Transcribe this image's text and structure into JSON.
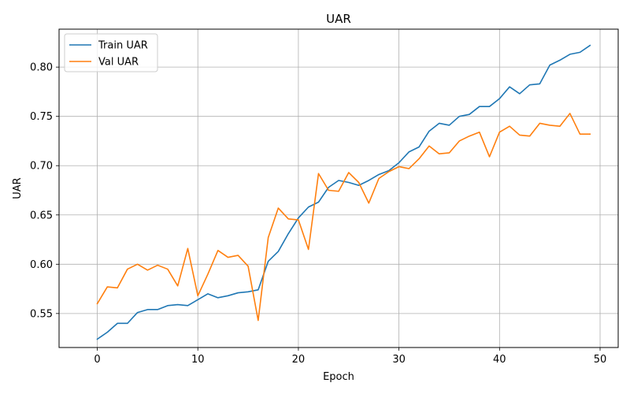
{
  "chart_data": {
    "type": "line",
    "title": "UAR",
    "xlabel": "Epoch",
    "ylabel": "UAR",
    "xlim": [
      -3.8,
      51.8
    ],
    "ylim": [
      0.5155,
      0.8385
    ],
    "xticks": [
      0,
      10,
      20,
      30,
      40,
      50
    ],
    "yticks": [
      0.55,
      0.6,
      0.65,
      0.7,
      0.75,
      0.8
    ],
    "xtick_labels": [
      "0",
      "10",
      "20",
      "30",
      "40",
      "50"
    ],
    "ytick_labels": [
      "0.55",
      "0.60",
      "0.65",
      "0.70",
      "0.75",
      "0.80"
    ],
    "grid": true,
    "legend_position": "top-left",
    "x": [
      0,
      1,
      2,
      3,
      4,
      5,
      6,
      7,
      8,
      9,
      10,
      11,
      12,
      13,
      14,
      15,
      16,
      17,
      18,
      19,
      20,
      21,
      22,
      23,
      24,
      25,
      26,
      27,
      28,
      29,
      30,
      31,
      32,
      33,
      34,
      35,
      36,
      37,
      38,
      39,
      40,
      41,
      42,
      43,
      44,
      45,
      46,
      47,
      48,
      49
    ],
    "series": [
      {
        "name": "Train UAR",
        "color": "#1f77b4",
        "values": [
          0.524,
          0.531,
          0.54,
          0.54,
          0.551,
          0.554,
          0.554,
          0.558,
          0.559,
          0.558,
          0.564,
          0.57,
          0.566,
          0.568,
          0.571,
          0.572,
          0.574,
          0.603,
          0.613,
          0.631,
          0.647,
          0.658,
          0.663,
          0.678,
          0.685,
          0.683,
          0.68,
          0.685,
          0.691,
          0.695,
          0.703,
          0.714,
          0.719,
          0.735,
          0.743,
          0.741,
          0.75,
          0.752,
          0.76,
          0.76,
          0.768,
          0.78,
          0.773,
          0.782,
          0.783,
          0.802,
          0.807,
          0.813,
          0.815,
          0.822
        ]
      },
      {
        "name": "Val UAR",
        "color": "#ff7f0e",
        "values": [
          0.56,
          0.577,
          0.576,
          0.595,
          0.6,
          0.594,
          0.599,
          0.595,
          0.578,
          0.616,
          0.568,
          0.59,
          0.614,
          0.607,
          0.609,
          0.598,
          0.543,
          0.627,
          0.657,
          0.646,
          0.645,
          0.615,
          0.692,
          0.675,
          0.674,
          0.693,
          0.683,
          0.662,
          0.687,
          0.694,
          0.699,
          0.697,
          0.707,
          0.72,
          0.712,
          0.713,
          0.725,
          0.73,
          0.734,
          0.709,
          0.734,
          0.74,
          0.731,
          0.73,
          0.743,
          0.741,
          0.74,
          0.753,
          0.732,
          0.732
        ]
      }
    ]
  }
}
